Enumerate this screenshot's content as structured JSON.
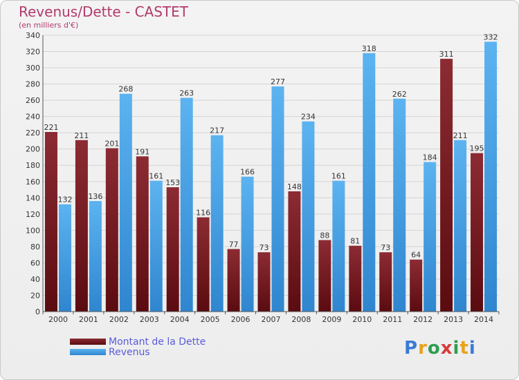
{
  "chart_data": {
    "type": "bar",
    "title": "Revenus/Dette - CASTET",
    "subtitle": "(en milliers d'€)",
    "categories": [
      "2000",
      "2001",
      "2002",
      "2003",
      "2004",
      "2005",
      "2006",
      "2007",
      "2008",
      "2009",
      "2010",
      "2011",
      "2012",
      "2013",
      "2014"
    ],
    "series": [
      {
        "name": "Montant de la Dette",
        "color": "#7a1f25",
        "values": [
          221,
          211,
          201,
          191,
          153,
          116,
          77,
          73,
          148,
          88,
          81,
          73,
          64,
          311,
          195
        ]
      },
      {
        "name": "Revenus",
        "color": "#4aa3e6",
        "values": [
          132,
          136,
          268,
          161,
          263,
          217,
          166,
          277,
          234,
          161,
          318,
          262,
          184,
          211,
          332
        ]
      }
    ],
    "ylim": [
      0,
      340
    ],
    "ytick_step": 20,
    "grid": true,
    "legend": "bottom-left"
  },
  "logo": {
    "text": "Proxiti"
  }
}
